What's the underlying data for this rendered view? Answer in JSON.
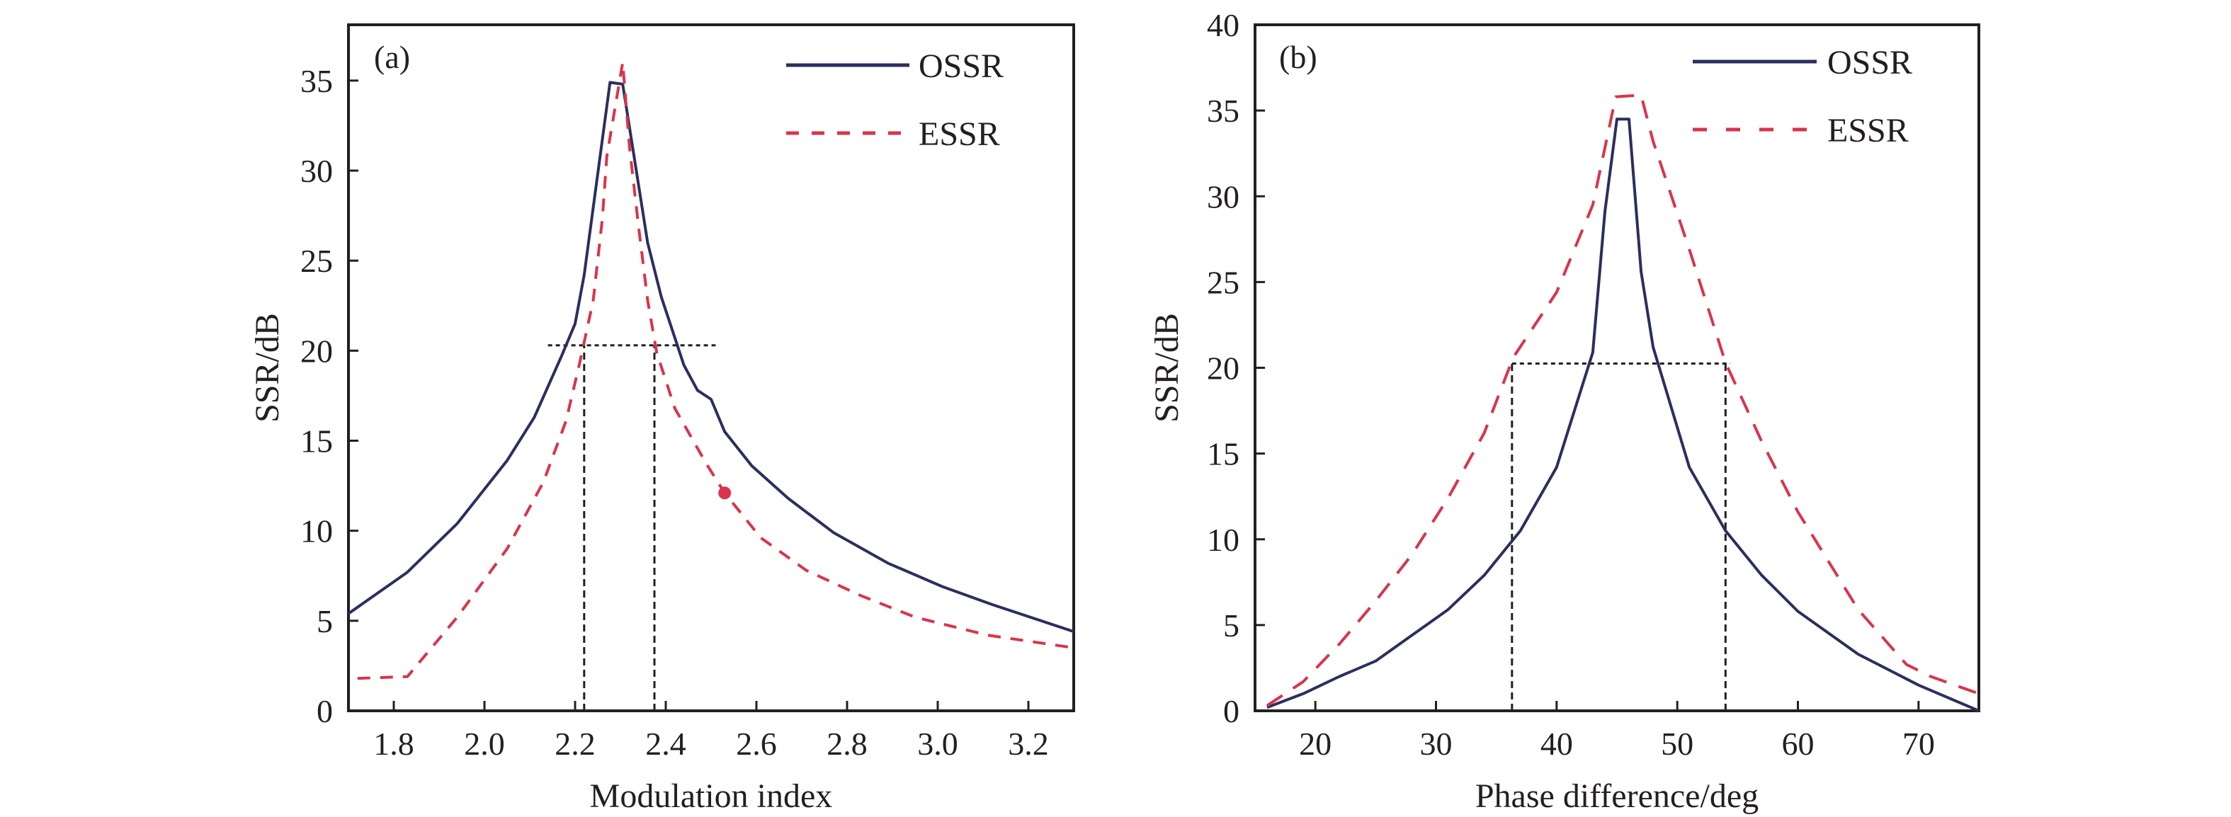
{
  "colors": {
    "ossr": "#2b2f5e",
    "essr": "#d9344a",
    "axis": "#231f20",
    "reference": "#231f20"
  },
  "chart_data": [
    {
      "panel_label": "(a)",
      "type": "line",
      "xlabel": "Modulation index",
      "ylabel": "SSR/dB",
      "xlim": [
        1.7,
        3.3
      ],
      "ylim": [
        0,
        38.1
      ],
      "xticks": [
        1.8,
        2.0,
        2.2,
        2.4,
        2.6,
        2.8,
        3.0,
        3.2
      ],
      "xtick_labels": [
        "1.8",
        "2.0",
        "2.2",
        "2.4",
        "2.6",
        "2.8",
        "3.0",
        "3.2"
      ],
      "yticks": [
        0,
        5,
        10,
        15,
        20,
        25,
        30,
        35
      ],
      "ytick_labels": [
        "0",
        "5",
        "10",
        "15",
        "20",
        "25",
        "30",
        "35"
      ],
      "grid": false,
      "legend_position": "top-right",
      "series": [
        {
          "name": "OSSR",
          "style": "solid",
          "x": [
            1.7,
            1.83,
            1.94,
            2.05,
            2.11,
            2.17,
            2.2,
            2.22,
            2.277,
            2.305,
            2.36,
            2.39,
            2.44,
            2.47,
            2.5,
            2.53,
            2.59,
            2.67,
            2.77,
            2.89,
            3.01,
            3.12,
            3.3
          ],
          "y": [
            5.4,
            7.7,
            10.4,
            13.9,
            16.3,
            19.7,
            21.5,
            24.2,
            34.9,
            34.8,
            26.0,
            23.0,
            19.2,
            17.8,
            17.3,
            15.5,
            13.6,
            11.8,
            9.9,
            8.2,
            6.9,
            5.9,
            4.4
          ]
        },
        {
          "name": "ESSR",
          "style": "dashed",
          "x": [
            1.72,
            1.83,
            1.94,
            2.05,
            2.13,
            2.18,
            2.21,
            2.24,
            2.26,
            2.27,
            2.305,
            2.32,
            2.34,
            2.36,
            2.38,
            2.42,
            2.49,
            2.53,
            2.61,
            2.71,
            2.83,
            2.95,
            3.11,
            3.3
          ],
          "y": [
            1.8,
            1.9,
            5.2,
            9.0,
            12.7,
            16.1,
            19.3,
            22.8,
            27.3,
            30.8,
            36.0,
            31.3,
            26.9,
            22.8,
            19.9,
            16.8,
            13.7,
            12.1,
            9.6,
            7.8,
            6.4,
            5.2,
            4.2,
            3.5
          ]
        }
      ],
      "annotations": {
        "marker_point": {
          "x": 2.53,
          "y": 12.1
        },
        "reference_hline": {
          "y": 20.3,
          "x_from": 2.14,
          "x_to": 2.51
        },
        "reference_vlines": [
          {
            "x": 2.22,
            "y_from": 0,
            "y_to": 20.3
          },
          {
            "x": 2.375,
            "y_from": 0,
            "y_to": 20.3
          }
        ]
      }
    },
    {
      "panel_label": "(b)",
      "type": "line",
      "xlabel": "Phase difference/deg",
      "ylabel": "SSR/dB",
      "xlim": [
        15,
        75
      ],
      "ylim": [
        0,
        40
      ],
      "xticks": [
        20,
        30,
        40,
        50,
        60,
        70
      ],
      "xtick_labels": [
        "20",
        "30",
        "40",
        "50",
        "60",
        "70"
      ],
      "yticks": [
        0,
        5,
        10,
        15,
        20,
        25,
        30,
        35,
        40
      ],
      "ytick_labels": [
        "0",
        "5",
        "10",
        "15",
        "20",
        "25",
        "30",
        "35",
        "40"
      ],
      "grid": false,
      "legend_position": "top-right",
      "series": [
        {
          "name": "OSSR",
          "style": "solid",
          "x": [
            16,
            19,
            22,
            25,
            28,
            31,
            34,
            37,
            40,
            43,
            44,
            45,
            46,
            47,
            48,
            51,
            54,
            57,
            60,
            65,
            70,
            75
          ],
          "y": [
            0.2,
            1.0,
            2.0,
            2.9,
            4.4,
            5.9,
            7.9,
            10.5,
            14.2,
            20.9,
            29.1,
            34.5,
            34.5,
            25.6,
            21.2,
            14.2,
            10.5,
            7.9,
            5.8,
            3.3,
            1.5,
            0.0
          ]
        },
        {
          "name": "ESSR",
          "style": "dashed",
          "x": [
            16,
            19,
            22,
            25,
            28,
            31,
            34,
            36.4,
            40,
            43,
            44.9,
            47,
            48,
            51,
            54,
            57,
            60,
            65,
            69,
            71,
            75
          ],
          "y": [
            0.3,
            1.7,
            3.9,
            6.4,
            9.1,
            12.4,
            16.2,
            20.6,
            24.4,
            29.5,
            35.8,
            35.9,
            33.2,
            26.9,
            20.3,
            15.7,
            11.6,
            5.9,
            2.7,
            2.0,
            1.0
          ]
        }
      ],
      "annotations": {
        "reference_hline": {
          "y": 20.25,
          "x_from": 36.3,
          "x_to": 54.4
        },
        "reference_vlines": [
          {
            "x": 36.3,
            "y_from": 0,
            "y_to": 20.25
          },
          {
            "x": 54.0,
            "y_from": 0,
            "y_to": 20.25
          }
        ]
      }
    }
  ]
}
